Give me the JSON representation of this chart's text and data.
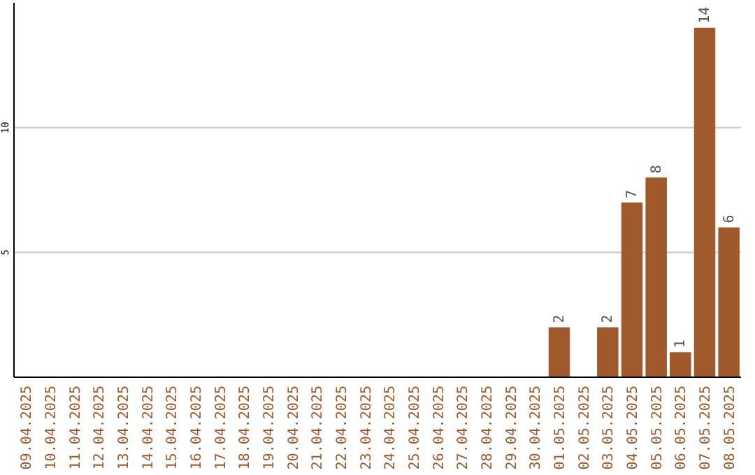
{
  "chart_data": {
    "type": "bar",
    "categories": [
      "09.04.2025",
      "10.04.2025",
      "11.04.2025",
      "12.04.2025",
      "13.04.2025",
      "14.04.2025",
      "15.04.2025",
      "16.04.2025",
      "17.04.2025",
      "18.04.2025",
      "19.04.2025",
      "20.04.2025",
      "21.04.2025",
      "22.04.2025",
      "23.04.2025",
      "24.04.2025",
      "25.04.2025",
      "26.04.2025",
      "27.04.2025",
      "28.04.2025",
      "29.04.2025",
      "30.04.2025",
      "01.05.2025",
      "02.05.2025",
      "03.05.2025",
      "04.05.2025",
      "05.05.2025",
      "06.05.2025",
      "07.05.2025",
      "08.05.2025"
    ],
    "values": [
      0,
      0,
      0,
      0,
      0,
      0,
      0,
      0,
      0,
      0,
      0,
      0,
      0,
      0,
      0,
      0,
      0,
      0,
      0,
      0,
      0,
      0,
      2,
      0,
      2,
      7,
      8,
      1,
      14,
      6
    ],
    "value_labels": [
      null,
      null,
      null,
      null,
      null,
      null,
      null,
      null,
      null,
      null,
      null,
      null,
      null,
      null,
      null,
      null,
      null,
      null,
      null,
      null,
      null,
      null,
      "2",
      null,
      "2",
      "7",
      "8",
      "1",
      "14",
      "6"
    ],
    "color": "#a0592a",
    "ylim": [
      0,
      15
    ],
    "yticks": [
      5,
      10
    ],
    "grid": "y"
  }
}
